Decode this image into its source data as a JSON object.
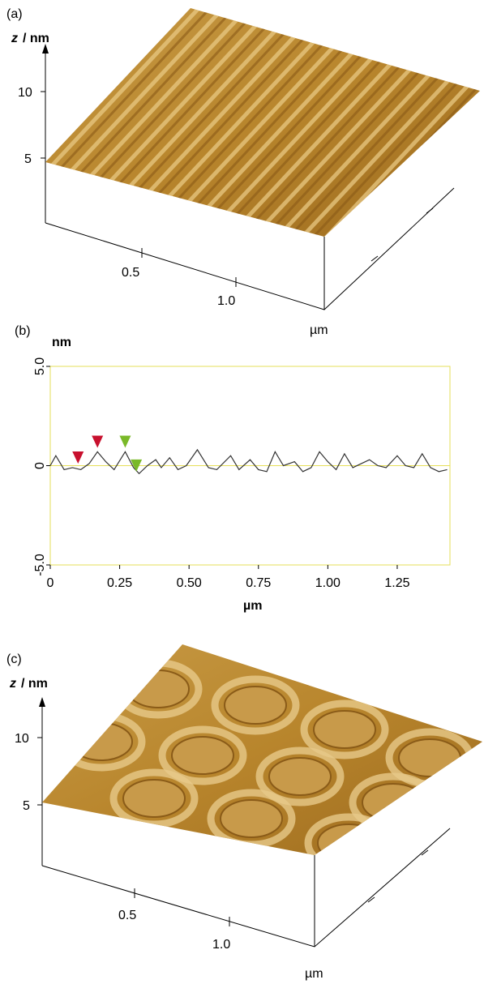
{
  "panel_a": {
    "label": "(a)",
    "z_var": "z",
    "z_unit": "/ nm",
    "zticks": [
      "10",
      "5"
    ],
    "xticks": [
      "0.5",
      "1.0"
    ],
    "unit": "µm"
  },
  "chart_data": {
    "type": "line",
    "panel_label": "(b)",
    "y_label": "nm",
    "x_label": "µm",
    "xlim": [
      0,
      1.44
    ],
    "ylim": [
      -5,
      5
    ],
    "yticks": [
      {
        "value": -5,
        "label": "-5.0"
      },
      0,
      {
        "value": 5,
        "label": "5.0"
      }
    ],
    "xticks": [
      0,
      0.25,
      {
        "value": 0.5,
        "label": "0.50"
      },
      0.75,
      {
        "value": 1,
        "label": "1.00"
      },
      1.25
    ],
    "frame_color": "#e6df5a",
    "x": [
      0,
      0.02,
      0.05,
      0.08,
      0.11,
      0.14,
      0.17,
      0.2,
      0.23,
      0.27,
      0.3,
      0.32,
      0.35,
      0.38,
      0.4,
      0.43,
      0.46,
      0.49,
      0.53,
      0.57,
      0.6,
      0.65,
      0.68,
      0.72,
      0.75,
      0.78,
      0.81,
      0.84,
      0.88,
      0.91,
      0.94,
      0.97,
      1.0,
      1.03,
      1.06,
      1.09,
      1.12,
      1.15,
      1.18,
      1.21,
      1.25,
      1.28,
      1.31,
      1.34,
      1.37,
      1.4,
      1.43
    ],
    "series": [
      {
        "color": "#333333",
        "values": [
          0,
          0.5,
          -0.2,
          -0.1,
          -0.2,
          0.1,
          0.7,
          0.2,
          -0.2,
          0.7,
          -0.1,
          -0.4,
          0,
          0.3,
          -0.1,
          0.4,
          -0.2,
          0,
          0.8,
          -0.1,
          -0.2,
          0.5,
          -0.2,
          0.3,
          -0.2,
          -0.3,
          0.7,
          0,
          0.2,
          -0.3,
          -0.1,
          0.7,
          0.2,
          -0.2,
          0.6,
          -0.1,
          0.1,
          0.3,
          0,
          -0.1,
          0.5,
          0,
          -0.1,
          0.6,
          -0.1,
          -0.3,
          -0.2
        ]
      }
    ],
    "markers": [
      {
        "x": 0.1,
        "y": 0.1,
        "color": "#c8102e"
      },
      {
        "x": 0.17,
        "y": 0.9,
        "color": "#c8102e"
      },
      {
        "x": 0.27,
        "y": 0.9,
        "color": "#7ab929"
      },
      {
        "x": 0.31,
        "y": -0.3,
        "color": "#7ab929"
      }
    ]
  },
  "panel_c": {
    "label": "(c)",
    "z_var": "z",
    "z_unit": "/ nm",
    "zticks": [
      "10",
      "5"
    ],
    "xticks": [
      "0.5",
      "1.0"
    ],
    "unit": "µm"
  }
}
